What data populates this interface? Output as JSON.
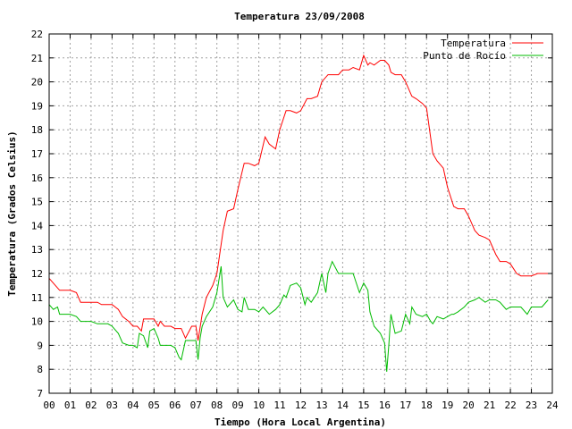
{
  "chart_data": {
    "type": "line",
    "title": "Temperatura 23/09/2008",
    "xlabel": "Tiempo (Hora Local Argentina)",
    "ylabel": "Temperatura (Grados Celsius)",
    "xlim": [
      0,
      24
    ],
    "ylim": [
      7,
      22
    ],
    "x_ticks": [
      "00",
      "01",
      "02",
      "03",
      "04",
      "05",
      "06",
      "07",
      "08",
      "09",
      "10",
      "11",
      "12",
      "13",
      "14",
      "15",
      "16",
      "17",
      "18",
      "19",
      "20",
      "21",
      "22",
      "23",
      "24"
    ],
    "y_ticks": [
      7,
      8,
      9,
      10,
      11,
      12,
      13,
      14,
      15,
      16,
      17,
      18,
      19,
      20,
      21,
      22
    ],
    "grid": true,
    "legend_position": "top-right",
    "series": [
      {
        "name": "Temperatura",
        "color": "#ff0000",
        "x": [
          0.0,
          0.3,
          0.5,
          0.8,
          1.0,
          1.3,
          1.5,
          1.8,
          2.0,
          2.3,
          2.5,
          2.8,
          3.0,
          3.3,
          3.5,
          3.8,
          4.0,
          4.2,
          4.4,
          4.5,
          4.7,
          5.0,
          5.2,
          5.3,
          5.5,
          5.8,
          6.0,
          6.3,
          6.5,
          6.8,
          7.0,
          7.1,
          7.3,
          7.5,
          7.8,
          8.0,
          8.3,
          8.5,
          8.8,
          9.0,
          9.3,
          9.5,
          9.8,
          10.0,
          10.3,
          10.5,
          10.8,
          11.0,
          11.3,
          11.5,
          11.8,
          12.0,
          12.3,
          12.5,
          12.8,
          13.0,
          13.3,
          13.5,
          13.8,
          14.0,
          14.3,
          14.5,
          14.8,
          15.0,
          15.2,
          15.3,
          15.5,
          15.8,
          16.0,
          16.2,
          16.3,
          16.5,
          16.8,
          17.0,
          17.3,
          17.5,
          17.8,
          18.0,
          18.3,
          18.5,
          18.8,
          19.0,
          19.3,
          19.5,
          19.8,
          20.0,
          20.3,
          20.5,
          20.8,
          21.0,
          21.3,
          21.5,
          21.8,
          22.0,
          22.3,
          22.5,
          22.8,
          23.0,
          23.3,
          23.5,
          23.8
        ],
        "y": [
          11.8,
          11.5,
          11.3,
          11.3,
          11.3,
          11.2,
          10.8,
          10.8,
          10.8,
          10.8,
          10.7,
          10.7,
          10.7,
          10.5,
          10.2,
          10.0,
          9.8,
          9.8,
          9.6,
          10.1,
          10.1,
          10.1,
          9.8,
          10.0,
          9.8,
          9.8,
          9.7,
          9.7,
          9.3,
          9.8,
          9.8,
          9.2,
          10.3,
          11.0,
          11.5,
          12.0,
          13.8,
          14.6,
          14.7,
          15.5,
          16.6,
          16.6,
          16.5,
          16.6,
          17.7,
          17.4,
          17.2,
          18.0,
          18.8,
          18.8,
          18.7,
          18.8,
          19.3,
          19.3,
          19.4,
          20.0,
          20.3,
          20.3,
          20.3,
          20.5,
          20.5,
          20.6,
          20.5,
          21.1,
          20.7,
          20.8,
          20.7,
          20.9,
          20.9,
          20.7,
          20.4,
          20.3,
          20.3,
          20.0,
          19.4,
          19.3,
          19.1,
          18.9,
          17.0,
          16.7,
          16.4,
          15.6,
          14.8,
          14.7,
          14.7,
          14.4,
          13.8,
          13.6,
          13.5,
          13.4,
          12.8,
          12.5,
          12.5,
          12.4,
          12.0,
          11.9,
          11.9,
          11.9,
          12.0,
          12.0,
          12.0
        ]
      },
      {
        "name": "Punto de Rocío",
        "color": "#00bb00",
        "x": [
          0.0,
          0.2,
          0.4,
          0.5,
          0.8,
          1.0,
          1.3,
          1.5,
          1.8,
          2.0,
          2.3,
          2.5,
          2.8,
          3.0,
          3.3,
          3.5,
          3.8,
          4.0,
          4.2,
          4.3,
          4.5,
          4.7,
          4.8,
          5.0,
          5.2,
          5.3,
          5.5,
          5.8,
          6.0,
          6.2,
          6.3,
          6.5,
          6.8,
          7.0,
          7.1,
          7.2,
          7.3,
          7.5,
          7.8,
          8.0,
          8.2,
          8.3,
          8.5,
          8.8,
          9.0,
          9.2,
          9.3,
          9.5,
          9.8,
          10.0,
          10.2,
          10.5,
          10.8,
          11.0,
          11.2,
          11.3,
          11.5,
          11.8,
          12.0,
          12.2,
          12.3,
          12.5,
          12.8,
          13.0,
          13.2,
          13.3,
          13.5,
          13.8,
          14.0,
          14.2,
          14.3,
          14.5,
          14.8,
          15.0,
          15.2,
          15.3,
          15.5,
          15.8,
          16.0,
          16.1,
          16.2,
          16.3,
          16.5,
          16.8,
          17.0,
          17.2,
          17.3,
          17.5,
          17.8,
          18.0,
          18.2,
          18.3,
          18.5,
          18.8,
          19.0,
          19.2,
          19.3,
          19.5,
          19.8,
          20.0,
          20.3,
          20.5,
          20.8,
          21.0,
          21.3,
          21.5,
          21.8,
          22.0,
          22.3,
          22.5,
          22.8,
          23.0,
          23.3,
          23.5,
          23.8
        ],
        "y": [
          10.7,
          10.5,
          10.6,
          10.3,
          10.3,
          10.3,
          10.2,
          10.0,
          10.0,
          10.0,
          9.9,
          9.9,
          9.9,
          9.8,
          9.5,
          9.1,
          9.0,
          9.0,
          8.9,
          9.5,
          9.4,
          8.9,
          9.6,
          9.7,
          9.3,
          9.0,
          9.0,
          9.0,
          8.9,
          8.5,
          8.4,
          9.2,
          9.2,
          9.2,
          8.4,
          9.3,
          9.8,
          10.2,
          10.6,
          11.2,
          12.3,
          11.0,
          10.6,
          10.9,
          10.5,
          10.4,
          11.0,
          10.5,
          10.5,
          10.4,
          10.6,
          10.3,
          10.5,
          10.7,
          11.1,
          11.0,
          11.5,
          11.6,
          11.4,
          10.7,
          11.0,
          10.8,
          11.2,
          12.0,
          11.2,
          12.0,
          12.5,
          12.0,
          12.0,
          12.0,
          12.0,
          12.0,
          11.2,
          11.6,
          11.3,
          10.4,
          9.8,
          9.5,
          9.1,
          7.9,
          9.0,
          10.3,
          9.5,
          9.6,
          10.3,
          9.9,
          10.6,
          10.3,
          10.2,
          10.3,
          10.0,
          9.9,
          10.2,
          10.1,
          10.2,
          10.3,
          10.3,
          10.4,
          10.6,
          10.8,
          10.9,
          11.0,
          10.8,
          10.9,
          10.9,
          10.8,
          10.5,
          10.6,
          10.6,
          10.6,
          10.3,
          10.6,
          10.6,
          10.6,
          10.9
        ]
      }
    ]
  }
}
